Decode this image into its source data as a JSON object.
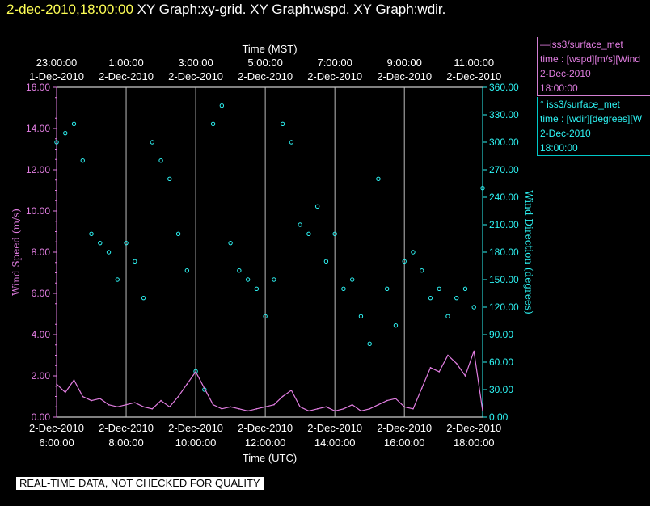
{
  "title": {
    "timestamp": "2-dec-2010,18:00:00",
    "text": " XY Graph:xy-grid.  XY Graph:wspd.  XY Graph:wdir."
  },
  "legend": {
    "wspd": {
      "name": "iss3/surface_met",
      "var": "time : [wspd][m/s][Wind",
      "date": "2-Dec-2010",
      "time": "18:00:00",
      "color": "#e27ee2"
    },
    "wdir": {
      "name": "iss3/surface_met",
      "var": "time : [wdir][degrees][W",
      "date": "2-Dec-2010",
      "time": "18:00:00",
      "color": "#2ef5f5"
    }
  },
  "footer": "REAL-TIME DATA, NOT CHECKED FOR QUALITY",
  "chart_data": {
    "type": "scatter",
    "top_axis": {
      "label": "Time (MST)",
      "ticks": [
        {
          "hour": 0,
          "time": "23:00:00",
          "date": "1-Dec-2010"
        },
        {
          "hour": 2,
          "time": "1:00:00",
          "date": "2-Dec-2010"
        },
        {
          "hour": 4,
          "time": "3:00:00",
          "date": "2-Dec-2010"
        },
        {
          "hour": 6,
          "time": "5:00:00",
          "date": "2-Dec-2010"
        },
        {
          "hour": 8,
          "time": "7:00:00",
          "date": "2-Dec-2010"
        },
        {
          "hour": 10,
          "time": "9:00:00",
          "date": "2-Dec-2010"
        },
        {
          "hour": 12,
          "time": "11:00:00",
          "date": "2-Dec-2010"
        }
      ]
    },
    "bottom_axis": {
      "label": "Time (UTC)",
      "ticks": [
        {
          "hour": 0,
          "date": "2-Dec-2010",
          "time": "6:00:00"
        },
        {
          "hour": 2,
          "date": "2-Dec-2010",
          "time": "8:00:00"
        },
        {
          "hour": 4,
          "date": "2-Dec-2010",
          "time": "10:00:00"
        },
        {
          "hour": 6,
          "date": "2-Dec-2010",
          "time": "12:00:00"
        },
        {
          "hour": 8,
          "date": "2-Dec-2010",
          "time": "14:00:00"
        },
        {
          "hour": 10,
          "date": "2-Dec-2010",
          "time": "16:00:00"
        },
        {
          "hour": 12,
          "date": "2-Dec-2010",
          "time": "18:00:00"
        }
      ]
    },
    "x_range_hours": [
      0,
      12.25
    ],
    "left_axis": {
      "label": "Wind Speed (m/s)",
      "range": [
        0,
        16
      ],
      "ticks": [
        "0.00",
        "2.00",
        "4.00",
        "6.00",
        "8.00",
        "10.00",
        "12.00",
        "14.00",
        "16.00"
      ]
    },
    "right_axis": {
      "label": "Wind Direction (degrees)",
      "range": [
        0,
        360
      ],
      "ticks": [
        "0.00",
        "30.00",
        "60.00",
        "90.00",
        "120.00",
        "150.00",
        "180.00",
        "210.00",
        "240.00",
        "270.00",
        "300.00",
        "330.00",
        "360.00"
      ]
    },
    "wspd_series": {
      "name": "iss3/surface_met wspd",
      "color": "#e27ee2",
      "hours": [
        0,
        0.25,
        0.5,
        0.75,
        1,
        1.25,
        1.5,
        1.75,
        2,
        2.25,
        2.5,
        2.75,
        3,
        3.25,
        3.5,
        3.75,
        4,
        4.25,
        4.5,
        4.75,
        5,
        5.25,
        5.5,
        5.75,
        6,
        6.25,
        6.5,
        6.75,
        7,
        7.25,
        7.5,
        7.75,
        8,
        8.25,
        8.5,
        8.75,
        9,
        9.25,
        9.5,
        9.75,
        10,
        10.25,
        10.5,
        10.75,
        11,
        11.25,
        11.5,
        11.75,
        12,
        12.25
      ],
      "values": [
        1.6,
        1.2,
        1.8,
        1.0,
        0.8,
        0.9,
        0.6,
        0.5,
        0.6,
        0.7,
        0.5,
        0.4,
        0.8,
        0.5,
        1.0,
        1.6,
        2.2,
        1.4,
        0.6,
        0.4,
        0.5,
        0.4,
        0.3,
        0.4,
        0.5,
        0.6,
        1.0,
        1.3,
        0.5,
        0.3,
        0.4,
        0.5,
        0.3,
        0.4,
        0.6,
        0.3,
        0.4,
        0.6,
        0.8,
        0.9,
        0.5,
        0.4,
        1.4,
        2.4,
        2.2,
        3.0,
        2.6,
        2.0,
        3.2,
        0.3
      ]
    },
    "wdir_series": {
      "name": "iss3/surface_met wdir",
      "color": "#2ef5f5",
      "hours": [
        0,
        0.25,
        0.5,
        0.75,
        1,
        1.25,
        1.5,
        1.75,
        2,
        2.25,
        2.5,
        2.75,
        3,
        3.25,
        3.5,
        3.75,
        4,
        4.25,
        4.5,
        4.75,
        5,
        5.25,
        5.5,
        5.75,
        6,
        6.25,
        6.5,
        6.75,
        7,
        7.25,
        7.5,
        7.75,
        8,
        8.25,
        8.5,
        8.75,
        9,
        9.25,
        9.5,
        9.75,
        10,
        10.25,
        10.5,
        10.75,
        11,
        11.25,
        11.5,
        11.75,
        12,
        12.25
      ],
      "values": [
        300,
        310,
        320,
        280,
        200,
        190,
        180,
        150,
        190,
        170,
        130,
        300,
        280,
        260,
        200,
        160,
        50,
        30,
        320,
        340,
        190,
        160,
        150,
        140,
        110,
        150,
        320,
        300,
        210,
        200,
        230,
        170,
        200,
        140,
        150,
        110,
        80,
        260,
        140,
        100,
        170,
        180,
        160,
        130,
        140,
        110,
        130,
        140,
        120,
        250
      ]
    }
  }
}
